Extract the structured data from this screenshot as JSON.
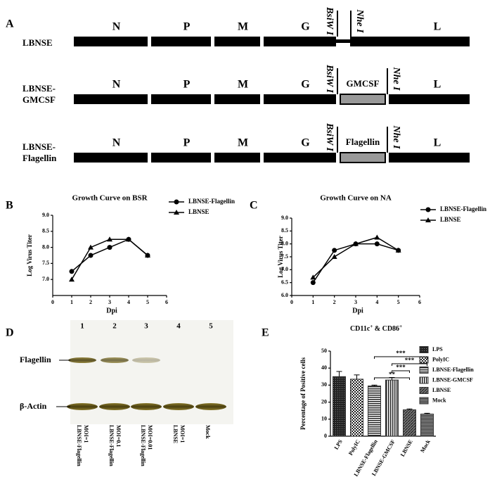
{
  "figure": {
    "panel_labels": [
      "A",
      "B",
      "C",
      "D",
      "E"
    ],
    "constructs": [
      {
        "name_lines": [
          "LBNSE"
        ],
        "genes": [
          "N",
          "P",
          "M",
          "G",
          "L"
        ],
        "sites": [
          "BsiW I",
          "Nhe I"
        ]
      },
      {
        "name_lines": [
          "LBNSE-",
          "GMCSF"
        ],
        "genes": [
          "N",
          "P",
          "M",
          "G",
          "L"
        ],
        "insert": "GMCSF",
        "sites": [
          "BsiW I",
          "Nhe I"
        ]
      },
      {
        "name_lines": [
          "LBNSE-",
          "Flagellin"
        ],
        "genes": [
          "N",
          "P",
          "M",
          "G",
          "L"
        ],
        "insert": "Flagellin",
        "sites": [
          "BsiW I",
          "Nhe I"
        ]
      }
    ],
    "blot": {
      "lanes": [
        "1",
        "2",
        "3",
        "4",
        "5"
      ],
      "lane_labels": [
        [
          "LBNSE-Flagellin",
          "MOI=1"
        ],
        [
          "LBNSE-Flagellin",
          "MOI=0.1"
        ],
        [
          "LBNSE-Flagellin",
          "MOI=0.01"
        ],
        [
          "LBNSE",
          "MOI=1"
        ],
        [
          "Mock"
        ]
      ],
      "bands": [
        "Flagellin",
        "β-Actin"
      ]
    }
  },
  "chart_data": [
    {
      "type": "line",
      "title": "Growth Curve on BSR",
      "x_label": "Dpi",
      "y_label": "Log Virus Titer",
      "x": [
        1,
        2,
        3,
        4,
        5
      ],
      "xlim": [
        0,
        6
      ],
      "xticks": [
        0,
        1,
        2,
        3,
        4,
        5,
        6
      ],
      "ylim": [
        6.5,
        9.0
      ],
      "yticks": [
        {
          "value": 7,
          "label": "7.0"
        },
        {
          "value": 7.5,
          "label": "7.5"
        },
        {
          "value": 8,
          "label": "8.0"
        },
        {
          "value": 8.5,
          "label": "8.5"
        },
        {
          "value": 9,
          "label": "9.0"
        }
      ],
      "series": [
        {
          "name": "LBNSE-Flagellin",
          "color": "#000000",
          "marker": "circle",
          "values": [
            7.25,
            7.75,
            8.0,
            8.25,
            7.75
          ]
        },
        {
          "name": "LBNSE",
          "color": "#000000",
          "marker": "triangle",
          "values": [
            7.0,
            8.0,
            8.25,
            8.25,
            7.75
          ]
        }
      ],
      "grid": false
    },
    {
      "type": "line",
      "title": "Growth Curve on NA",
      "x_label": "Dpi",
      "y_label": "Log Virus Titer",
      "x": [
        1,
        2,
        3,
        4,
        5
      ],
      "xlim": [
        0,
        6
      ],
      "xticks": [
        0,
        1,
        2,
        3,
        4,
        5,
        6
      ],
      "ylim": [
        6.0,
        9.0
      ],
      "yticks": [
        {
          "value": 6,
          "label": "6.0"
        },
        {
          "value": 6.5,
          "label": "6.5"
        },
        {
          "value": 7,
          "label": "7.0"
        },
        {
          "value": 7.5,
          "label": "7.5"
        },
        {
          "value": 8,
          "label": "8.0"
        },
        {
          "value": 8.5,
          "label": "8.5"
        },
        {
          "value": 9,
          "label": "9.0"
        }
      ],
      "series": [
        {
          "name": "LBNSE-Flagellin",
          "color": "#000000",
          "marker": "circle",
          "values": [
            6.5,
            7.75,
            8.0,
            8.0,
            7.75
          ]
        },
        {
          "name": "LBNSE",
          "color": "#000000",
          "marker": "triangle",
          "values": [
            6.7,
            7.5,
            8.0,
            8.25,
            7.75
          ]
        }
      ],
      "grid": false
    },
    {
      "type": "bar",
      "title_parts": [
        "CD11c",
        "+",
        " & CD86",
        "+"
      ],
      "y_label": "Percentage of Positive cells",
      "categories": [
        "LPS",
        "PolyIC",
        "LBNSE-Flagellin",
        "LBNSE-GMCSF",
        "LBNSE",
        "Mock"
      ],
      "values": [
        35,
        33.5,
        29.5,
        33,
        15.5,
        13
      ],
      "errors": [
        3,
        2.5,
        0.5,
        1.5,
        0.5,
        0.5
      ],
      "ylim": [
        0,
        50
      ],
      "yticks": [
        0,
        10,
        20,
        30,
        40,
        50
      ],
      "color": "#333333",
      "significance": [
        {
          "label": "***",
          "between": [
            "LBNSE-Flagellin",
            "Mock"
          ]
        },
        {
          "label": "***",
          "between": [
            "LBNSE-GMCSF",
            "Mock"
          ]
        },
        {
          "label": "***",
          "between": [
            "LBNSE-GMCSF",
            "LBNSE"
          ]
        },
        {
          "label": "**",
          "between": [
            "LBNSE-Flagellin",
            "LBNSE"
          ]
        }
      ],
      "grid": false
    }
  ]
}
